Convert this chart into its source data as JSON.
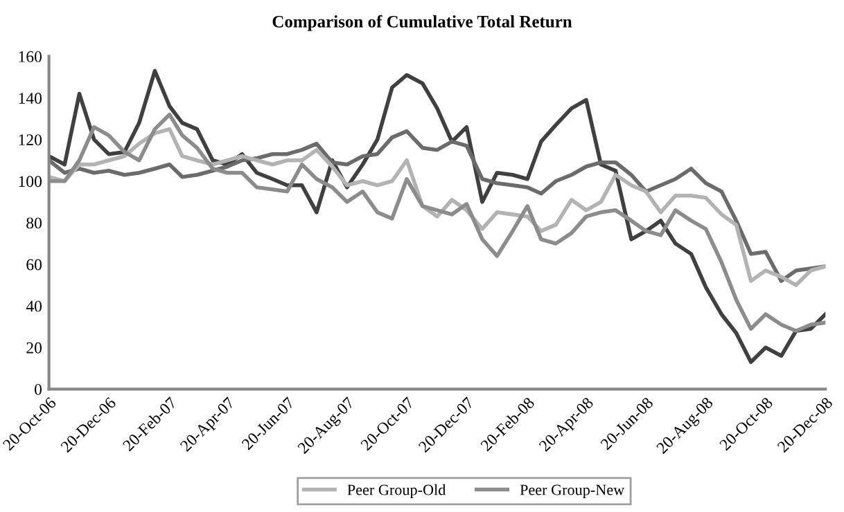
{
  "chart_data": {
    "type": "line",
    "title": "Comparison of Cumulative Total Return",
    "x": [
      "2006-10-20",
      "2006-11-05",
      "2006-11-20",
      "2006-12-05",
      "2006-12-20",
      "2007-01-05",
      "2007-01-20",
      "2007-02-05",
      "2007-02-20",
      "2007-03-05",
      "2007-03-20",
      "2007-04-05",
      "2007-04-20",
      "2007-05-05",
      "2007-05-20",
      "2007-06-05",
      "2007-06-20",
      "2007-07-05",
      "2007-07-20",
      "2007-08-05",
      "2007-08-20",
      "2007-09-05",
      "2007-09-20",
      "2007-10-05",
      "2007-10-20",
      "2007-11-05",
      "2007-11-20",
      "2007-12-05",
      "2007-12-20",
      "2008-01-05",
      "2008-01-20",
      "2008-02-05",
      "2008-02-20",
      "2008-03-05",
      "2008-03-20",
      "2008-04-05",
      "2008-04-20",
      "2008-05-05",
      "2008-05-20",
      "2008-06-05",
      "2008-06-20",
      "2008-07-05",
      "2008-07-20",
      "2008-08-05",
      "2008-08-20",
      "2008-09-05",
      "2008-09-20",
      "2008-10-05",
      "2008-10-20",
      "2008-11-05",
      "2008-11-20",
      "2008-12-05",
      "2008-12-20"
    ],
    "series": [
      {
        "color": "#404040",
        "values": [
          112,
          108,
          142,
          120,
          113,
          114,
          128,
          153,
          136,
          128,
          125,
          110,
          108,
          113,
          104,
          101,
          98,
          98,
          85,
          110,
          97,
          108,
          120,
          145,
          151,
          147,
          135,
          119,
          126,
          90,
          104,
          103,
          101,
          119,
          127,
          135,
          139,
          108,
          105,
          72,
          76,
          81,
          70,
          65,
          49,
          36,
          27,
          13,
          20,
          16,
          28,
          29,
          36
        ]
      },
      {
        "color": "#6b6b6b",
        "values": [
          110,
          104,
          106,
          104,
          105,
          103,
          104,
          106,
          108,
          102,
          103,
          105,
          107,
          110,
          111,
          113,
          113,
          115,
          118,
          109,
          108,
          112,
          113,
          121,
          124,
          116,
          115,
          119,
          117,
          101,
          99,
          98,
          97,
          94,
          100,
          103,
          107,
          109,
          109,
          103,
          95,
          98,
          101,
          106,
          99,
          95,
          81,
          65,
          66,
          52,
          57,
          58,
          59
        ]
      },
      {
        "color": "#b3b3b3",
        "name": "Peer Group-Old",
        "values": [
          102,
          100,
          108,
          108,
          110,
          112,
          118,
          123,
          125,
          112,
          110,
          108,
          110,
          112,
          110,
          108,
          110,
          110,
          115,
          107,
          98,
          100,
          98,
          100,
          110,
          88,
          83,
          91,
          86,
          77,
          85,
          84,
          83,
          76,
          79,
          91,
          86,
          90,
          103,
          98,
          95,
          85,
          93,
          93,
          92,
          84,
          79,
          52,
          57,
          54,
          50,
          57,
          59
        ]
      },
      {
        "color": "#8c8c8c",
        "name": "Peer Group-New",
        "values": [
          100,
          100,
          110,
          126,
          122,
          114,
          110,
          125,
          132,
          122,
          116,
          106,
          104,
          104,
          97,
          96,
          95,
          108,
          101,
          97,
          90,
          95,
          85,
          82,
          101,
          88,
          86,
          84,
          89,
          72,
          64,
          76,
          88,
          72,
          70,
          75,
          83,
          85,
          86,
          81,
          76,
          74,
          86,
          81,
          77,
          61,
          43,
          29,
          36,
          31,
          28,
          31,
          32
        ]
      }
    ],
    "xlim": [
      "2006-10-20",
      "2008-12-20"
    ],
    "xticks": [
      {
        "value": "2006-10-20",
        "label": "20-Oct-06"
      },
      {
        "value": "2006-12-20",
        "label": "20-Dec-06"
      },
      {
        "value": "2007-02-20",
        "label": "20-Feb-07"
      },
      {
        "value": "2007-04-20",
        "label": "20-Apr-07"
      },
      {
        "value": "2007-06-20",
        "label": "20-Jun-07"
      },
      {
        "value": "2007-08-20",
        "label": "20-Aug-07"
      },
      {
        "value": "2007-10-20",
        "label": "20-Oct-07"
      },
      {
        "value": "2007-12-20",
        "label": "20-Dec-07"
      },
      {
        "value": "2008-02-20",
        "label": "20-Feb-08"
      },
      {
        "value": "2008-04-20",
        "label": "20-Apr-08"
      },
      {
        "value": "2008-06-20",
        "label": "20-Jun-08"
      },
      {
        "value": "2008-08-20",
        "label": "20-Aug-08"
      },
      {
        "value": "2008-10-20",
        "label": "20-Oct-08"
      },
      {
        "value": "2008-12-20",
        "label": "20-Dec-08"
      }
    ],
    "ylim": [
      0,
      160
    ],
    "yticks": [
      0,
      20,
      40,
      60,
      80,
      100,
      120,
      140,
      160
    ],
    "grid": false,
    "legend": "bottom",
    "marker": "none",
    "line_style": "solid"
  }
}
